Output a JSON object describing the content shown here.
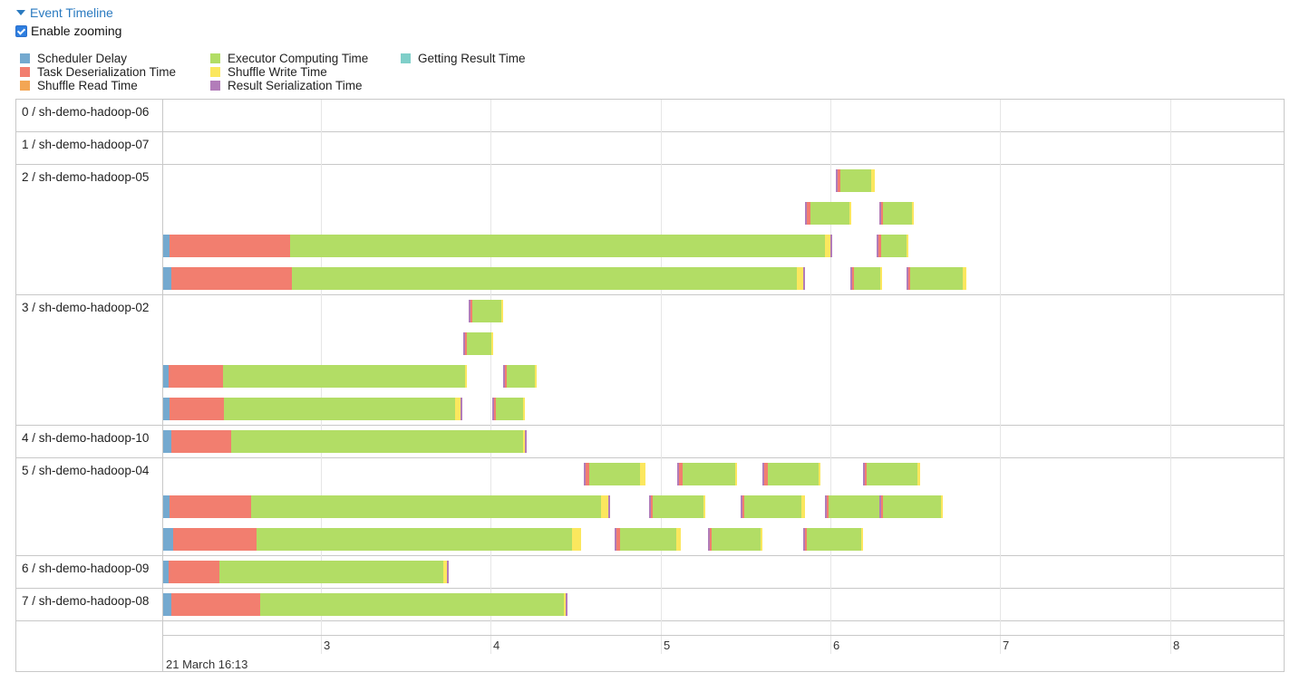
{
  "header": {
    "toggle_label": "Event Timeline",
    "zoom_label": "Enable zooming",
    "zoom_checked": true
  },
  "legend": [
    {
      "key": "scheduler",
      "label": "Scheduler Delay",
      "color": "#74a9cf"
    },
    {
      "key": "deser",
      "label": "Task Deserialization Time",
      "color": "#f27e6f"
    },
    {
      "key": "shread",
      "label": "Shuffle Read Time",
      "color": "#f3a654"
    },
    {
      "key": "compute",
      "label": "Executor Computing Time",
      "color": "#b2dd65"
    },
    {
      "key": "shwrite",
      "label": "Shuffle Write Time",
      "color": "#fbe75e"
    },
    {
      "key": "resser",
      "label": "Result Serialization Time",
      "color": "#b27cb9"
    },
    {
      "key": "getres",
      "label": "Getting Result Time",
      "color": "#7fcfc9"
    }
  ],
  "rows": [
    {
      "label": "0 / sh-demo-hadoop-06",
      "lanes": 1
    },
    {
      "label": "1 / sh-demo-hadoop-07",
      "lanes": 1
    },
    {
      "label": "2 / sh-demo-hadoop-05",
      "lanes": 4
    },
    {
      "label": "3 / sh-demo-hadoop-02",
      "lanes": 4
    },
    {
      "label": "4 / sh-demo-hadoop-10",
      "lanes": 1
    },
    {
      "label": "5 / sh-demo-hadoop-04",
      "lanes": 3
    },
    {
      "label": "6 / sh-demo-hadoop-09",
      "lanes": 1
    },
    {
      "label": "7 / sh-demo-hadoop-08",
      "lanes": 1
    }
  ],
  "axis": {
    "start_seconds": 2.07,
    "end_seconds": 8.67,
    "ticks": [
      "3",
      "4",
      "5",
      "6",
      "7",
      "8"
    ],
    "tick_values": [
      3,
      4,
      5,
      6,
      7,
      8
    ],
    "date_label": "21 March 16:13"
  },
  "tasks": [
    {
      "row": 2,
      "lane": 0,
      "start": 6.03,
      "segs": [
        [
          "resser",
          0.01
        ],
        [
          "deser",
          0.02
        ],
        [
          "compute",
          0.18
        ],
        [
          "shwrite",
          0.02
        ]
      ]
    },
    {
      "row": 2,
      "lane": 1,
      "start": 5.85,
      "segs": [
        [
          "resser",
          0.01
        ],
        [
          "deser",
          0.02
        ],
        [
          "compute",
          0.23
        ],
        [
          "shwrite",
          0.01
        ]
      ]
    },
    {
      "row": 2,
      "lane": 1,
      "start": 6.29,
      "segs": [
        [
          "resser",
          0.01
        ],
        [
          "deser",
          0.01
        ],
        [
          "compute",
          0.17
        ],
        [
          "shwrite",
          0.01
        ]
      ]
    },
    {
      "row": 2,
      "lane": 2,
      "start": 2.07,
      "segs": [
        [
          "scheduler",
          0.04
        ],
        [
          "deser",
          0.71
        ],
        [
          "compute",
          3.15
        ],
        [
          "shwrite",
          0.03
        ],
        [
          "resser",
          0.01
        ]
      ]
    },
    {
      "row": 2,
      "lane": 2,
      "start": 6.27,
      "segs": [
        [
          "resser",
          0.01
        ],
        [
          "deser",
          0.02
        ],
        [
          "compute",
          0.15
        ],
        [
          "shwrite",
          0.01
        ]
      ]
    },
    {
      "row": 2,
      "lane": 3,
      "start": 2.07,
      "segs": [
        [
          "scheduler",
          0.05
        ],
        [
          "deser",
          0.71
        ],
        [
          "compute",
          2.97
        ],
        [
          "shwrite",
          0.04
        ],
        [
          "resser",
          0.01
        ]
      ]
    },
    {
      "row": 2,
      "lane": 3,
      "start": 6.12,
      "segs": [
        [
          "resser",
          0.01
        ],
        [
          "deser",
          0.01
        ],
        [
          "compute",
          0.15
        ],
        [
          "shwrite",
          0.01
        ]
      ]
    },
    {
      "row": 2,
      "lane": 3,
      "start": 6.45,
      "segs": [
        [
          "resser",
          0.01
        ],
        [
          "deser",
          0.01
        ],
        [
          "compute",
          0.31
        ],
        [
          "shwrite",
          0.02
        ]
      ]
    },
    {
      "row": 3,
      "lane": 0,
      "start": 3.87,
      "segs": [
        [
          "resser",
          0.01
        ],
        [
          "deser",
          0.01
        ],
        [
          "compute",
          0.17
        ],
        [
          "shwrite",
          0.01
        ]
      ]
    },
    {
      "row": 3,
      "lane": 1,
      "start": 3.84,
      "segs": [
        [
          "resser",
          0.01
        ],
        [
          "deser",
          0.01
        ],
        [
          "compute",
          0.14
        ],
        [
          "shwrite",
          0.01
        ]
      ]
    },
    {
      "row": 3,
      "lane": 2,
      "start": 2.07,
      "segs": [
        [
          "scheduler",
          0.03
        ],
        [
          "deser",
          0.32
        ],
        [
          "compute",
          1.43
        ],
        [
          "shwrite",
          0.01
        ]
      ]
    },
    {
      "row": 3,
      "lane": 2,
      "start": 4.07,
      "segs": [
        [
          "resser",
          0.01
        ],
        [
          "deser",
          0.01
        ],
        [
          "compute",
          0.17
        ],
        [
          "shwrite",
          0.01
        ]
      ]
    },
    {
      "row": 3,
      "lane": 3,
      "start": 2.07,
      "segs": [
        [
          "scheduler",
          0.04
        ],
        [
          "deser",
          0.32
        ],
        [
          "compute",
          1.36
        ],
        [
          "shwrite",
          0.03
        ],
        [
          "resser",
          0.01
        ]
      ]
    },
    {
      "row": 3,
      "lane": 3,
      "start": 4.01,
      "segs": [
        [
          "resser",
          0.01
        ],
        [
          "deser",
          0.01
        ],
        [
          "compute",
          0.16
        ],
        [
          "shwrite",
          0.01
        ]
      ]
    },
    {
      "row": 4,
      "lane": 0,
      "start": 2.07,
      "segs": [
        [
          "scheduler",
          0.05
        ],
        [
          "deser",
          0.35
        ],
        [
          "compute",
          1.72
        ],
        [
          "shwrite",
          0.01
        ],
        [
          "resser",
          0.01
        ]
      ]
    },
    {
      "row": 5,
      "lane": 0,
      "start": 4.55,
      "segs": [
        [
          "resser",
          0.01
        ],
        [
          "deser",
          0.02
        ],
        [
          "compute",
          0.3
        ],
        [
          "shwrite",
          0.03
        ]
      ]
    },
    {
      "row": 5,
      "lane": 0,
      "start": 5.1,
      "segs": [
        [
          "resser",
          0.01
        ],
        [
          "deser",
          0.02
        ],
        [
          "compute",
          0.31
        ],
        [
          "shwrite",
          0.01
        ]
      ]
    },
    {
      "row": 5,
      "lane": 0,
      "start": 5.6,
      "segs": [
        [
          "resser",
          0.01
        ],
        [
          "deser",
          0.02
        ],
        [
          "compute",
          0.3
        ],
        [
          "shwrite",
          0.01
        ]
      ]
    },
    {
      "row": 5,
      "lane": 0,
      "start": 6.19,
      "segs": [
        [
          "resser",
          0.01
        ],
        [
          "deser",
          0.01
        ],
        [
          "compute",
          0.3
        ],
        [
          "shwrite",
          0.02
        ]
      ]
    },
    {
      "row": 5,
      "lane": 1,
      "start": 2.07,
      "segs": [
        [
          "scheduler",
          0.04
        ],
        [
          "deser",
          0.48
        ],
        [
          "compute",
          2.06
        ],
        [
          "shwrite",
          0.04
        ],
        [
          "resser",
          0.01
        ]
      ]
    },
    {
      "row": 5,
      "lane": 1,
      "start": 4.93,
      "segs": [
        [
          "resser",
          0.01
        ],
        [
          "deser",
          0.01
        ],
        [
          "compute",
          0.3
        ],
        [
          "shwrite",
          0.01
        ]
      ]
    },
    {
      "row": 5,
      "lane": 1,
      "start": 5.47,
      "segs": [
        [
          "resser",
          0.01
        ],
        [
          "deser",
          0.01
        ],
        [
          "compute",
          0.34
        ],
        [
          "shwrite",
          0.02
        ]
      ]
    },
    {
      "row": 5,
      "lane": 1,
      "start": 5.97,
      "segs": [
        [
          "resser",
          0.01
        ],
        [
          "deser",
          0.01
        ],
        [
          "compute",
          0.34
        ],
        [
          "shwrite",
          0.01
        ]
      ]
    },
    {
      "row": 5,
      "lane": 1,
      "start": 6.29,
      "segs": [
        [
          "resser",
          0.01
        ],
        [
          "deser",
          0.01
        ],
        [
          "compute",
          0.34
        ],
        [
          "shwrite",
          0.01
        ]
      ]
    },
    {
      "row": 5,
      "lane": 2,
      "start": 2.07,
      "segs": [
        [
          "scheduler",
          0.06
        ],
        [
          "deser",
          0.49
        ],
        [
          "compute",
          1.86
        ],
        [
          "shwrite",
          0.05
        ]
      ]
    },
    {
      "row": 5,
      "lane": 2,
      "start": 4.73,
      "segs": [
        [
          "resser",
          0.01
        ],
        [
          "deser",
          0.02
        ],
        [
          "compute",
          0.33
        ],
        [
          "shwrite",
          0.03
        ]
      ]
    },
    {
      "row": 5,
      "lane": 2,
      "start": 5.28,
      "segs": [
        [
          "resser",
          0.01
        ],
        [
          "deser",
          0.01
        ],
        [
          "compute",
          0.29
        ],
        [
          "shwrite",
          0.01
        ]
      ]
    },
    {
      "row": 5,
      "lane": 2,
      "start": 5.84,
      "segs": [
        [
          "resser",
          0.01
        ],
        [
          "deser",
          0.01
        ],
        [
          "compute",
          0.32
        ],
        [
          "shwrite",
          0.01
        ]
      ]
    },
    {
      "row": 6,
      "lane": 0,
      "start": 2.07,
      "segs": [
        [
          "scheduler",
          0.03
        ],
        [
          "deser",
          0.3
        ],
        [
          "compute",
          1.32
        ],
        [
          "shwrite",
          0.02
        ],
        [
          "resser",
          0.01
        ]
      ]
    },
    {
      "row": 7,
      "lane": 0,
      "start": 2.07,
      "segs": [
        [
          "scheduler",
          0.05
        ],
        [
          "deser",
          0.52
        ],
        [
          "compute",
          1.79
        ],
        [
          "shwrite",
          0.01
        ],
        [
          "resser",
          0.01
        ]
      ]
    }
  ]
}
